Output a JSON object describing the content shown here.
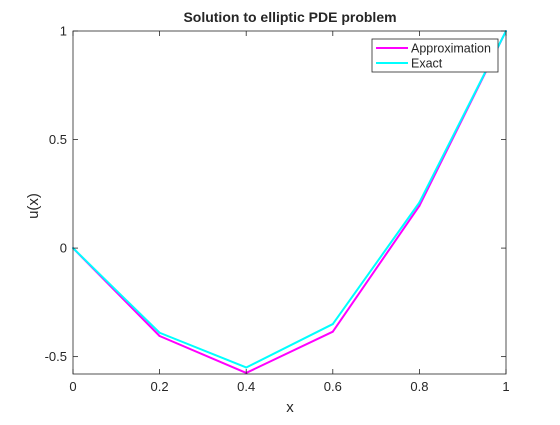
{
  "chart_data": {
    "type": "line",
    "title": "Solution to elliptic PDE problem",
    "xlabel": "x",
    "ylabel": "u(x)",
    "xlim": [
      0,
      1
    ],
    "ylim": [
      -0.58,
      1
    ],
    "xticks": [
      0,
      0.2,
      0.4,
      0.6,
      0.8,
      1
    ],
    "xtick_labels": [
      "0",
      "0.2",
      "0.4",
      "0.6",
      "0.8",
      "1"
    ],
    "yticks": [
      -0.5,
      0,
      0.5,
      1
    ],
    "ytick_labels": [
      "-0.5",
      "0",
      "0.5",
      "1"
    ],
    "grid": false,
    "legend_position": "top-right",
    "series": [
      {
        "name": "Approximation",
        "color": "#ff00ff",
        "x": [
          0,
          0.2,
          0.4,
          0.6,
          0.8,
          1.0
        ],
        "y": [
          0,
          -0.405,
          -0.575,
          -0.385,
          0.195,
          1.0
        ]
      },
      {
        "name": "Exact",
        "color": "#00ffff",
        "x": [
          0,
          0.2,
          0.4,
          0.6,
          0.8,
          1.0
        ],
        "y": [
          0,
          -0.39,
          -0.55,
          -0.35,
          0.21,
          1.0
        ]
      }
    ]
  }
}
